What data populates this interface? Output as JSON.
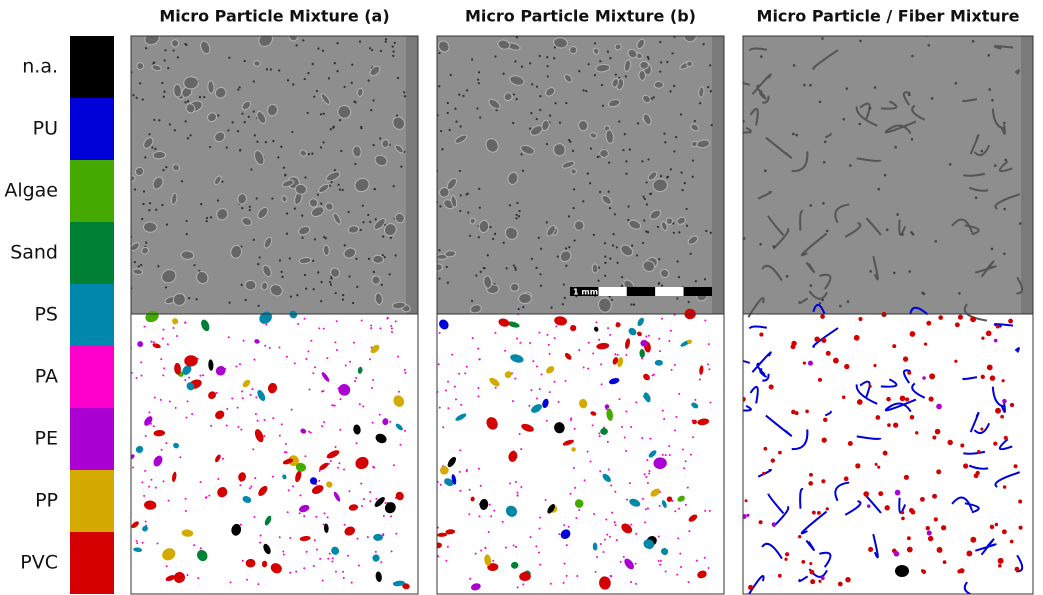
{
  "legend": {
    "items": [
      {
        "label": "n.a.",
        "color": "#000000"
      },
      {
        "label": "PU",
        "color": "#0000d8"
      },
      {
        "label": "Algae",
        "color": "#44aa00"
      },
      {
        "label": "Sand",
        "color": "#008033"
      },
      {
        "label": "PS",
        "color": "#0088aa"
      },
      {
        "label": "PA",
        "color": "#ff00cc"
      },
      {
        "label": "PE",
        "color": "#aa00d4"
      },
      {
        "label": "PP",
        "color": "#d4aa00"
      },
      {
        "label": "PVC",
        "color": "#d40000"
      }
    ]
  },
  "panels": [
    {
      "title": "Micro Particle Mixture (a)"
    },
    {
      "title": "Micro Particle Mixture (b)"
    },
    {
      "title": "Micro Particle / Fiber Mixture"
    }
  ],
  "scale_bar": {
    "label": "1 mm"
  }
}
